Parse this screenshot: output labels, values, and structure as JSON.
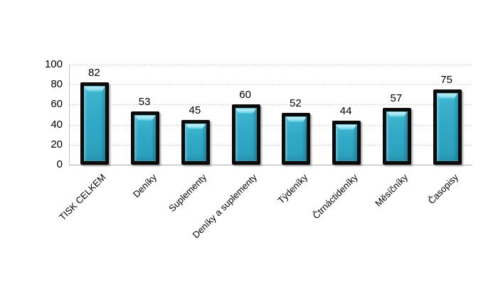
{
  "chart_data": {
    "type": "bar",
    "title": "",
    "categories": [
      "TISK CELKEM",
      "Deníky",
      "Suplementy",
      "Deníky a suplementy",
      "Týdeníky",
      "Čtrnáctideníky",
      "Měsíčníky",
      "Časopisy"
    ],
    "values": [
      82,
      53,
      45,
      60,
      52,
      44,
      57,
      75
    ],
    "xlabel": "",
    "ylabel": "",
    "ylim": [
      0,
      100
    ],
    "y_ticks": [
      0,
      20,
      40,
      60,
      80,
      100
    ],
    "grid": "horizontal-dotted",
    "legend_position": "none",
    "data_labels": "above-bars",
    "colors": {
      "bar_fill": "#2FA6C3",
      "bar_highlight": "#9BE3F0",
      "bar_border": "#0B0B0B",
      "gridline": "#B9B9B9",
      "axis_line": "#A8A8A8",
      "text": "#000000",
      "background": "#FFFFFF"
    }
  }
}
